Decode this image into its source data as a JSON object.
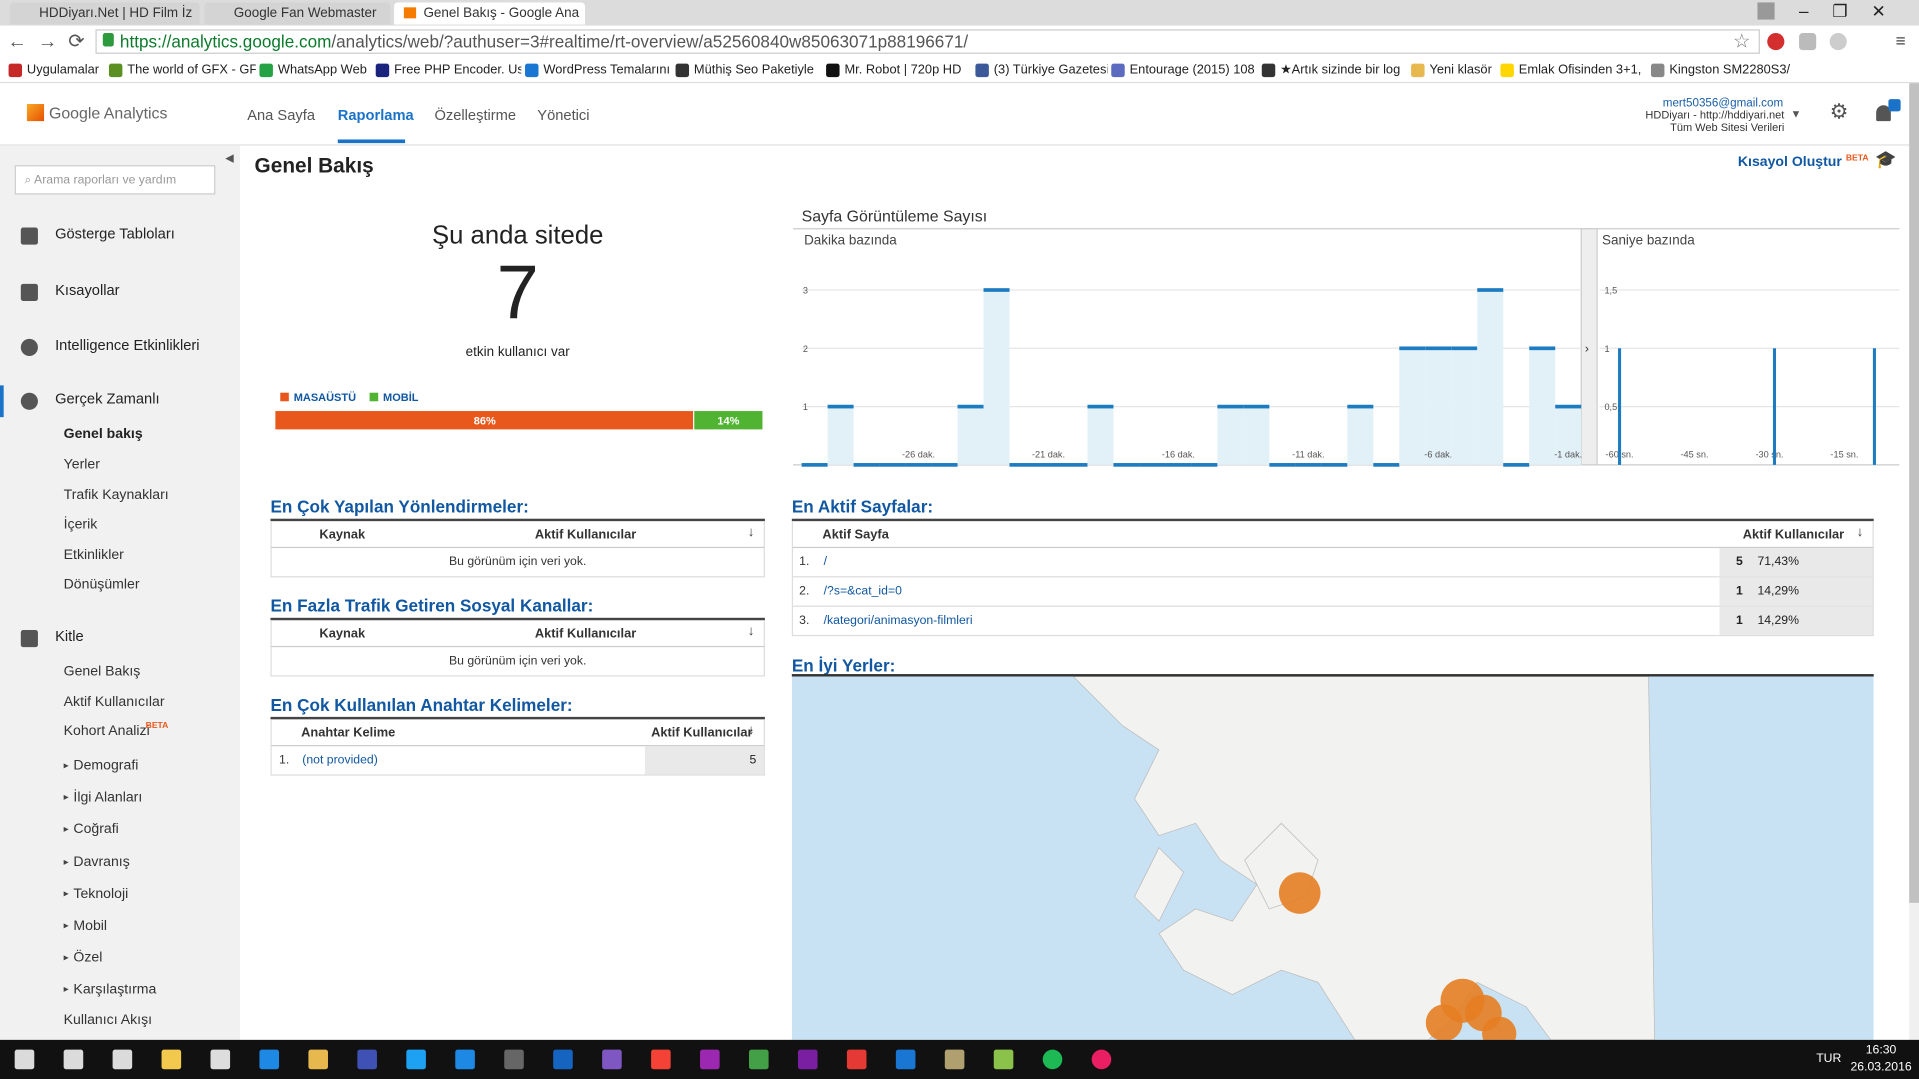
{
  "browser": {
    "tabs": [
      "HDDiyarı.Net | HD Film İz",
      "Google Fan Webmaster Fo",
      "Genel Bakış - Google Ana"
    ],
    "url_host": "https://analytics.google.com",
    "url_path": "/analytics/web/?authuser=3#realtime/rt-overview/a52560840w85063071p88196671/",
    "bookmarks": [
      "Uygulamalar",
      "The world of GFX - GF",
      "WhatsApp Web",
      "Free PHP Encoder. Us",
      "WordPress Temalarını",
      "Müthiş Seo Paketiyle",
      "Mr. Robot | 720p HD",
      "(3) Türkiye Gazetesi",
      "Entourage (2015) 108",
      "★Artık sizinde bir log",
      "Yeni klasör",
      "Emlak Ofisinden 3+1,",
      "Kingston SM2280S3/"
    ]
  },
  "header": {
    "logo": "Google Analytics",
    "nav": [
      "Ana Sayfa",
      "Raporlama",
      "Özelleştirme",
      "Yönetici"
    ],
    "account": {
      "email": "mert50356@gmail.com",
      "property": "HDDiyarı - http://hddiyari.net",
      "view": "Tüm Web Sitesi Verileri"
    }
  },
  "sidebar": {
    "search": "Arama raporları ve yardım",
    "beta": "BETA",
    "sections": [
      {
        "label": "Gösterge Tabloları"
      },
      {
        "label": "Kısayollar"
      },
      {
        "label": "Intelligence Etkinlikleri"
      },
      {
        "label": "Gerçek Zamanlı",
        "items": [
          "Genel bakış",
          "Yerler",
          "Trafik Kaynakları",
          "İçerik",
          "Etkinlikler",
          "Dönüşümler"
        ]
      },
      {
        "label": "Kitle",
        "items": [
          "Genel Bakış",
          "Aktif Kullanıcılar",
          "Kohort Analizi",
          "Demografi",
          "İlgi Alanları",
          "Coğrafi",
          "Davranış",
          "Teknoloji",
          "Mobil",
          "Özel",
          "Karşılaştırma",
          "Kullanıcı Akışı"
        ]
      }
    ]
  },
  "main": {
    "title": "Genel Bakış",
    "shortcut": "Kısayol Oluştur",
    "shortcut_badge": "BETA"
  },
  "realtime": {
    "heading": "Şu anda sitede",
    "count": 7,
    "caption": "etkin kullanıcı var"
  },
  "chart_data": [
    {
      "type": "stacked-bar",
      "xlim": [
        0,
        100
      ],
      "series": [
        {
          "name": "MASAÜSTÜ",
          "color": "#e8581c",
          "values": [
            86
          ],
          "value_labels": [
            "86%"
          ]
        },
        {
          "name": "MOBİL",
          "color": "#50b432",
          "values": [
            14
          ],
          "value_labels": [
            "14%"
          ]
        }
      ]
    },
    {
      "type": "bar",
      "title": "Sayfa Görüntüleme Sayısı",
      "subtitle": "Dakika bazında",
      "color": "#1d7bc0",
      "categories": [
        null,
        null,
        null,
        null,
        "-26 dak.",
        null,
        null,
        null,
        null,
        "-21 dak.",
        null,
        null,
        null,
        null,
        "-16 dak.",
        null,
        null,
        null,
        null,
        "-11 dak.",
        null,
        null,
        null,
        null,
        "-6 dak.",
        null,
        null,
        null,
        null,
        "-1 dak."
      ],
      "values": [
        0,
        1,
        0,
        0,
        0,
        0,
        1,
        3,
        0,
        0,
        0,
        1,
        0,
        0,
        0,
        0,
        1,
        1,
        0,
        0,
        0,
        1,
        0,
        2,
        2,
        2,
        3,
        0,
        2,
        1
      ],
      "ylim": [
        0,
        3.4
      ],
      "yticks": [
        1,
        2,
        3
      ],
      "grid": true
    },
    {
      "type": "spike",
      "subtitle": "Saniye bazında",
      "color": "#1d7bc0",
      "x": [
        -60,
        -29,
        -9
      ],
      "values": [
        1,
        1,
        1
      ],
      "xlim": [
        -64,
        -4
      ],
      "xticks": [
        {
          "value": -60,
          "label": "-60 sn."
        },
        {
          "value": -45,
          "label": "-45 sn."
        },
        {
          "value": -30,
          "label": "-30 sn."
        },
        {
          "value": -15,
          "label": "-15 sn."
        }
      ],
      "ylim": [
        0,
        1.7
      ],
      "yticks": [
        {
          "value": 0.5,
          "label": "0,5"
        },
        1,
        {
          "value": 1.5,
          "label": "1,5"
        }
      ],
      "grid": true
    }
  ],
  "tables": {
    "referrals": {
      "title": "En Çok Yapılan Yönlendirmeler:",
      "headers": [
        "Kaynak",
        "Aktif Kullanıcılar"
      ],
      "empty": "Bu görünüm için veri yok."
    },
    "social": {
      "title": "En Fazla Trafik Getiren Sosyal Kanallar:",
      "headers": [
        "Kaynak",
        "Aktif Kullanıcılar"
      ],
      "empty": "Bu görünüm için veri yok."
    },
    "keywords": {
      "title": "En Çok Kullanılan Anahtar Kelimeler:",
      "headers": [
        "Anahtar Kelime",
        "Aktif Kullanıcılar"
      ],
      "rows": [
        [
          "1.",
          "(not provided)",
          5
        ]
      ]
    },
    "pages": {
      "title": "En Aktif Sayfalar:",
      "headers": [
        "Aktif Sayfa",
        "Aktif Kullanıcılar"
      ],
      "rows": [
        [
          "1.",
          "/",
          5,
          "71,43%"
        ],
        [
          "2.",
          "/?s=&cat_id=0",
          1,
          "14,29%"
        ],
        [
          "3.",
          "/kategori/animasyon-filmleri",
          1,
          "14,29%"
        ]
      ]
    }
  },
  "locations": {
    "title": "En İyi Yerler:"
  },
  "taskbar": {
    "language": "TUR",
    "time": "16:30",
    "date": "26.03.2016"
  }
}
